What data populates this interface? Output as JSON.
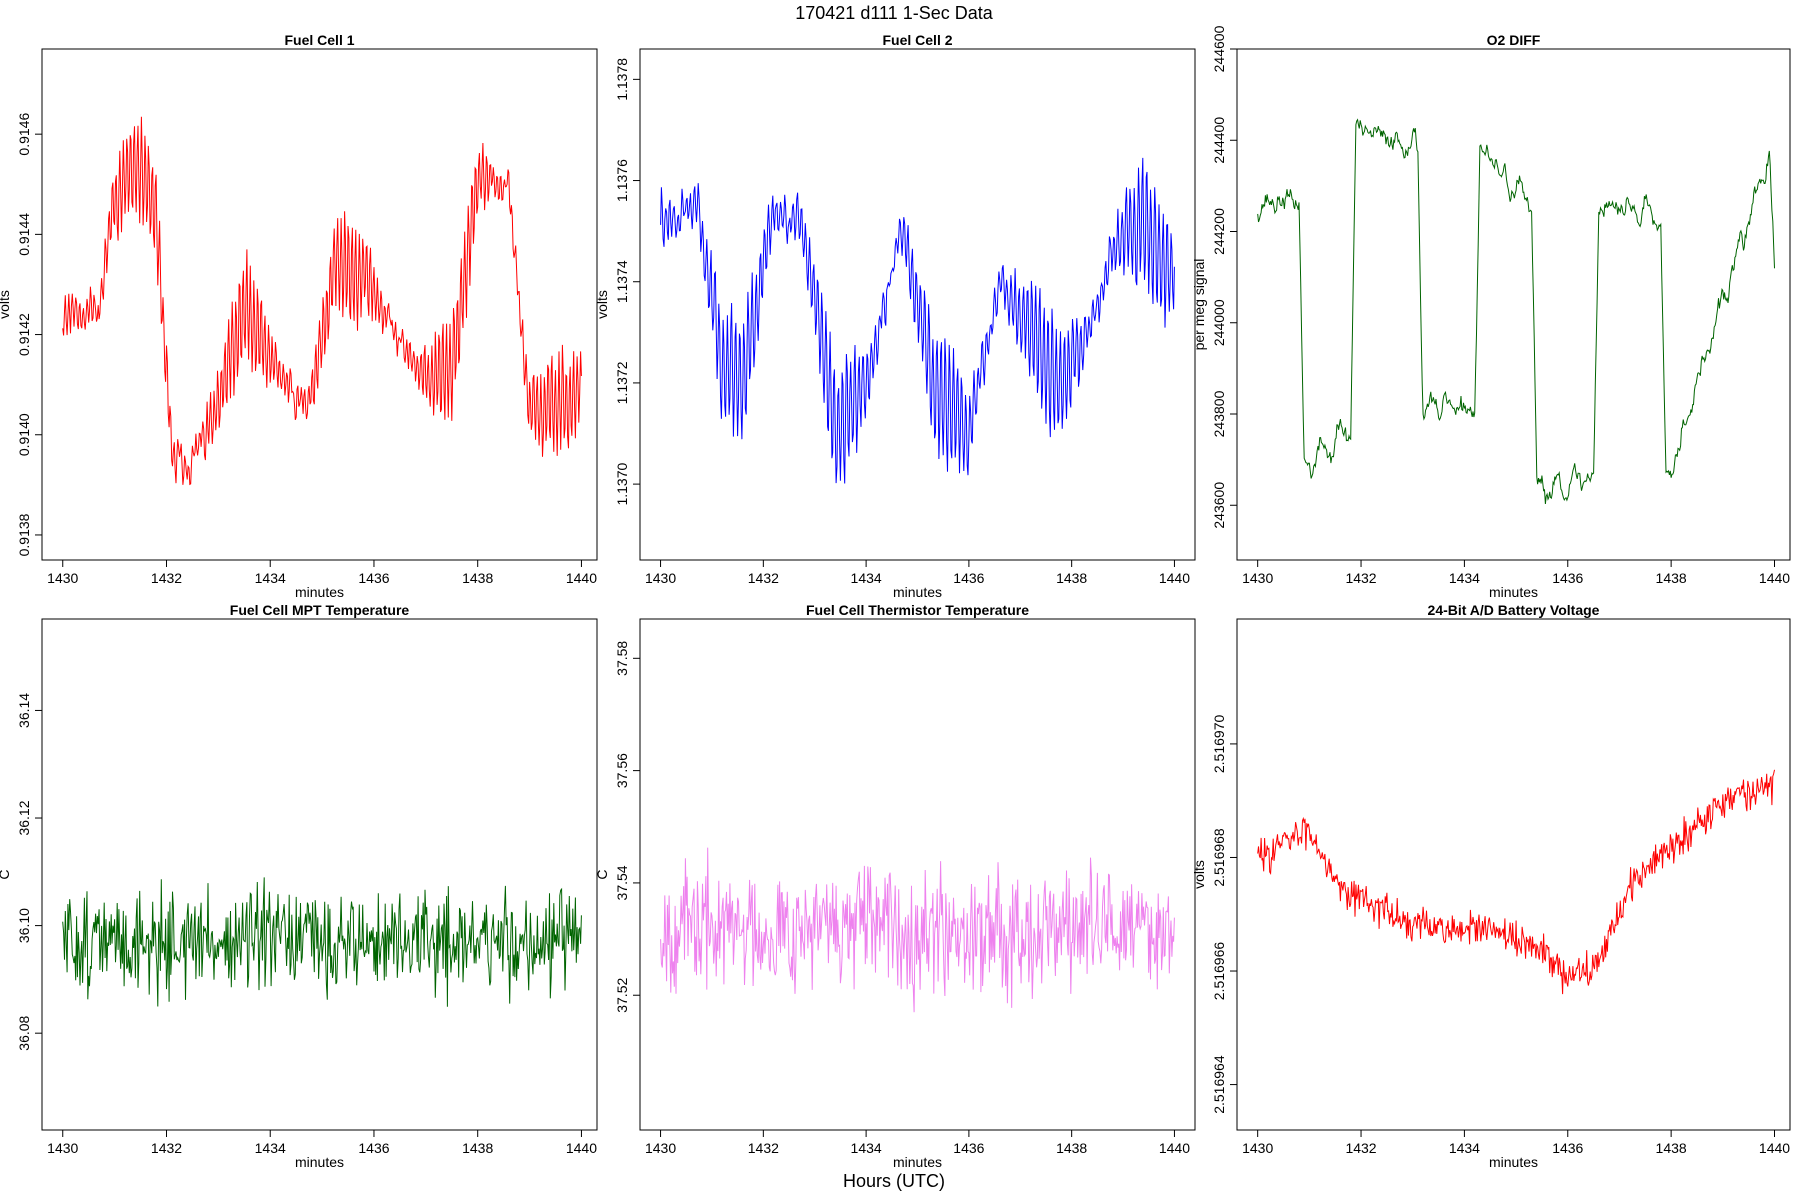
{
  "figure": {
    "suptitle": "170421   d111   1-Sec Data",
    "xlabel": "Hours (UTC)"
  },
  "chart_data": [
    {
      "type": "line",
      "title": "Fuel Cell 1",
      "xlabel": "minutes",
      "ylabel": "volts",
      "color": "#ff0000",
      "xlim": [
        1429.6,
        1440.3
      ],
      "ylim": [
        0.91375,
        0.91477
      ],
      "xticks": [
        1430,
        1432,
        1434,
        1436,
        1438,
        1440
      ],
      "xtick_labels": [
        "1430",
        "1432",
        "1434",
        "1436",
        "1438",
        "1440"
      ],
      "yticks": [
        0.9138,
        0.914,
        0.9142,
        0.9144,
        0.9146
      ],
      "ytick_labels": [
        "0.9138",
        "0.9140",
        "0.9142",
        "0.9144",
        "0.9146"
      ],
      "trend_x": [
        1430,
        1430.7,
        1431,
        1431.4,
        1431.8,
        1432.1,
        1432.5,
        1433,
        1433.5,
        1434,
        1434.7,
        1435.3,
        1436,
        1436.5,
        1437,
        1437.5,
        1438,
        1438.6,
        1439,
        1439.5,
        1440
      ],
      "trend_y": [
        0.91425,
        0.91425,
        0.91448,
        0.91453,
        0.91445,
        0.91395,
        0.91395,
        0.91405,
        0.91425,
        0.91415,
        0.91405,
        0.91435,
        0.9143,
        0.91418,
        0.91412,
        0.91412,
        0.91452,
        0.91448,
        0.91405,
        0.91405,
        0.9141
      ],
      "amp": 0.0001,
      "noise": 5e-05,
      "freq": 0.07,
      "seed": 11
    },
    {
      "type": "line",
      "title": "Fuel Cell 2",
      "xlabel": "minutes",
      "ylabel": "volts",
      "color": "#0000ff",
      "xlim": [
        1429.6,
        1440.4
      ],
      "ylim": [
        1.13685,
        1.13786
      ],
      "xticks": [
        1430,
        1432,
        1434,
        1436,
        1438,
        1440
      ],
      "xtick_labels": [
        "1430",
        "1432",
        "1434",
        "1436",
        "1438",
        "1440"
      ],
      "yticks": [
        1.137,
        1.1372,
        1.1374,
        1.1376,
        1.1378
      ],
      "ytick_labels": [
        "1.1370",
        "1.1372",
        "1.1374",
        "1.1376",
        "1.1378"
      ],
      "trend_x": [
        1430,
        1430.7,
        1431.2,
        1431.6,
        1432.2,
        1432.8,
        1433.4,
        1434,
        1434.7,
        1435.3,
        1436,
        1436.6,
        1437.2,
        1437.8,
        1438.3,
        1439,
        1439.5,
        1440
      ],
      "trend_y": [
        1.13752,
        1.13755,
        1.13725,
        1.1372,
        1.13755,
        1.1375,
        1.1371,
        1.1372,
        1.1375,
        1.1372,
        1.1371,
        1.1374,
        1.1373,
        1.1372,
        1.1373,
        1.1375,
        1.1375,
        1.1374
      ],
      "amp": 0.00012,
      "noise": 5e-05,
      "freq": 0.08,
      "seed": 23
    },
    {
      "type": "line",
      "title": "O2 DIFF",
      "xlabel": "minutes",
      "ylabel": "per meg signal",
      "color": "#006400",
      "xlim": [
        1429.6,
        1440.3
      ],
      "ylim": [
        243480,
        244600
      ],
      "xticks": [
        1430,
        1432,
        1434,
        1436,
        1438,
        1440
      ],
      "xtick_labels": [
        "1430",
        "1432",
        "1434",
        "1436",
        "1438",
        "1440"
      ],
      "yticks": [
        243600,
        243800,
        244000,
        244200,
        244400,
        244600
      ],
      "ytick_labels": [
        "243600",
        "243800",
        "244000",
        "244200",
        "244400",
        "244600"
      ],
      "trend_x": [
        1430,
        1430.8,
        1430.9,
        1431.8,
        1431.9,
        1433.1,
        1433.2,
        1434.2,
        1434.3,
        1435.3,
        1435.4,
        1436.5,
        1436.6,
        1437.8,
        1437.9,
        1439.9,
        1440
      ],
      "trend_y": [
        244260,
        244270,
        243680,
        243770,
        244420,
        244390,
        243810,
        243810,
        244380,
        244250,
        243640,
        243660,
        244260,
        244240,
        243650,
        244370,
        244090
      ],
      "amp": 25,
      "noise": 40,
      "freq": 0.35,
      "seed": 37
    },
    {
      "type": "line",
      "title": "Fuel Cell MPT Temperature",
      "xlabel": "minutes",
      "ylabel": "C",
      "color": "#006400",
      "xlim": [
        1429.6,
        1440.3
      ],
      "ylim": [
        36.062,
        36.157
      ],
      "xticks": [
        1430,
        1432,
        1434,
        1436,
        1438,
        1440
      ],
      "xtick_labels": [
        "1430",
        "1432",
        "1434",
        "1436",
        "1438",
        "1440"
      ],
      "yticks": [
        36.08,
        36.1,
        36.12,
        36.14
      ],
      "ytick_labels": [
        "36.08",
        "36.10",
        "36.12",
        "36.14"
      ],
      "trend_x": [
        1430,
        1440
      ],
      "trend_y": [
        36.097,
        36.097
      ],
      "amp": 0,
      "noise": 0.014,
      "freq": 1,
      "seed": 51
    },
    {
      "type": "line",
      "title": "Fuel Cell Thermistor Temperature",
      "xlabel": "minutes",
      "ylabel": "C",
      "color": "#ee82ee",
      "xlim": [
        1429.6,
        1440.4
      ],
      "ylim": [
        37.496,
        37.587
      ],
      "xticks": [
        1430,
        1432,
        1434,
        1436,
        1438,
        1440
      ],
      "xtick_labels": [
        "1430",
        "1432",
        "1434",
        "1436",
        "1438",
        "1440"
      ],
      "yticks": [
        37.52,
        37.54,
        37.56,
        37.58
      ],
      "ytick_labels": [
        "37.52",
        "37.54",
        "37.56",
        "37.58"
      ],
      "trend_x": [
        1430,
        1440
      ],
      "trend_y": [
        37.532,
        37.532
      ],
      "amp": 0,
      "noise": 0.016,
      "freq": 1,
      "seed": 67
    },
    {
      "type": "line",
      "title": "24-Bit A/D Battery Voltage",
      "xlabel": "minutes",
      "ylabel": "volts",
      "color": "#ff0000",
      "xlim": [
        1429.6,
        1440.3
      ],
      "ylim": [
        2.5169632,
        2.5169722
      ],
      "xticks": [
        1430,
        1432,
        1434,
        1436,
        1438,
        1440
      ],
      "xtick_labels": [
        "1430",
        "1432",
        "1434",
        "1436",
        "1438",
        "1440"
      ],
      "yticks": [
        2.516964,
        2.516966,
        2.516968,
        2.51697
      ],
      "ytick_labels": [
        "2.516964",
        "2.516966",
        "2.516968",
        "2.516970"
      ],
      "trend_x": [
        1430,
        1431,
        1431.6,
        1433,
        1434.5,
        1435.5,
        1436,
        1436.6,
        1437.2,
        1438,
        1439,
        1440
      ],
      "trend_y": [
        2.516968,
        2.5169685,
        2.5169675,
        2.5169668,
        2.5169667,
        2.5169664,
        2.5169658,
        2.5169662,
        2.5169675,
        2.5169682,
        2.516969,
        2.5169693
      ],
      "amp": 0,
      "noise": 4.5e-07,
      "freq": 1,
      "seed": 83
    }
  ]
}
